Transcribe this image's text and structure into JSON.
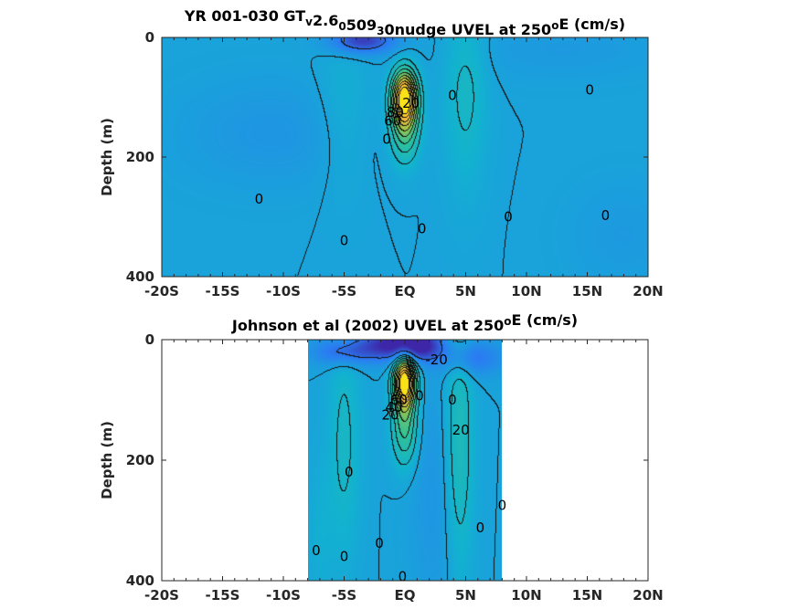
{
  "chart_data": [
    {
      "type": "heatmap",
      "title_parts": [
        {
          "t": "YR 001-030 GT"
        },
        {
          "t": "v",
          "shift": "sub"
        },
        {
          "t": "2.6"
        },
        {
          "t": "0",
          "shift": "sub"
        },
        {
          "t": "509"
        },
        {
          "t": "3",
          "shift": "sub"
        },
        {
          "t": "0nudge UVEL at 250"
        },
        {
          "t": "o",
          "shift": "sup"
        },
        {
          "t": "E (cm/s)"
        }
      ],
      "xlabel": "",
      "ylabel": "Depth (m)",
      "xlim": [
        -20,
        20
      ],
      "ylim": [
        0,
        400
      ],
      "y_reversed": true,
      "x_ticks": [
        {
          "v": -20,
          "label": "-20S"
        },
        {
          "v": -15,
          "label": "-15S"
        },
        {
          "v": -10,
          "label": "-10S"
        },
        {
          "v": -5,
          "label": "-5S"
        },
        {
          "v": 0,
          "label": "EQ"
        },
        {
          "v": 5,
          "label": "5N"
        },
        {
          "v": 10,
          "label": "10N"
        },
        {
          "v": 15,
          "label": "15N"
        },
        {
          "v": 20,
          "label": "20N"
        }
      ],
      "y_ticks": [
        {
          "v": 0,
          "label": "0"
        },
        {
          "v": 200,
          "label": "200"
        },
        {
          "v": 400,
          "label": "400"
        }
      ],
      "data_extent_x": [
        -20,
        20
      ],
      "colormap": [
        "#3e26a8",
        "#2a7ef2",
        "#12b2d0",
        "#2ec19a",
        "#a1c446",
        "#f8b83a",
        "#f9e215"
      ],
      "color_range": [
        -40,
        100
      ],
      "background_value": 0,
      "features": [
        {
          "x": 0,
          "y": 100,
          "sx": 0.7,
          "sy": 30,
          "amp": 95
        },
        {
          "x": 0,
          "y": 150,
          "sx": 0.8,
          "sy": 40,
          "amp": 35
        },
        {
          "x": -3.5,
          "y": 5,
          "sx": 1.8,
          "sy": 15,
          "amp": -35
        },
        {
          "x": 5,
          "y": 90,
          "sx": 1.2,
          "sy": 110,
          "amp": 12
        },
        {
          "x": -11,
          "y": 160,
          "sx": 5,
          "sy": 60,
          "amp": -6
        },
        {
          "x": 13,
          "y": 20,
          "sx": 6,
          "sy": 35,
          "amp": -4
        },
        {
          "x": -5,
          "y": 120,
          "sx": 1.5,
          "sy": 90,
          "amp": 6
        },
        {
          "x": 18,
          "y": 330,
          "sx": 3,
          "sy": 60,
          "amp": -4
        }
      ],
      "contour_levels": [
        -20,
        0,
        10,
        20,
        30,
        40,
        50,
        60,
        70,
        80,
        90
      ],
      "contour_labels": [
        {
          "text": "0",
          "x": 3.9,
          "y": 97
        },
        {
          "text": "0",
          "x": 15.2,
          "y": 88
        },
        {
          "text": "0",
          "x": -12.0,
          "y": 270
        },
        {
          "text": "0",
          "x": -5.0,
          "y": 340
        },
        {
          "text": "0",
          "x": 1.4,
          "y": 320
        },
        {
          "text": "0",
          "x": 8.5,
          "y": 300
        },
        {
          "text": "0",
          "x": 16.5,
          "y": 298
        },
        {
          "text": "0",
          "x": -1.5,
          "y": 170
        },
        {
          "text": "20",
          "x": 0.5,
          "y": 110
        },
        {
          "text": "80",
          "x": -0.8,
          "y": 125
        },
        {
          "text": "60",
          "x": -1.0,
          "y": 140
        }
      ]
    },
    {
      "type": "heatmap",
      "title_parts": [
        {
          "t": "Johnson et al (2002) UVEL at 250"
        },
        {
          "t": "o",
          "shift": "sup"
        },
        {
          "t": "E (cm/s)"
        }
      ],
      "xlabel": "",
      "ylabel": "Depth (m)",
      "xlim": [
        -20,
        20
      ],
      "ylim": [
        0,
        400
      ],
      "y_reversed": true,
      "x_ticks": [
        {
          "v": -20,
          "label": "-20S"
        },
        {
          "v": -15,
          "label": "-15S"
        },
        {
          "v": -10,
          "label": "-10S"
        },
        {
          "v": -5,
          "label": "-5S"
        },
        {
          "v": 0,
          "label": "EQ"
        },
        {
          "v": 5,
          "label": "5N"
        },
        {
          "v": 10,
          "label": "10N"
        },
        {
          "v": 15,
          "label": "15N"
        },
        {
          "v": 20,
          "label": "20N"
        }
      ],
      "y_ticks": [
        {
          "v": 0,
          "label": "0"
        },
        {
          "v": 200,
          "label": "200"
        },
        {
          "v": 400,
          "label": "400"
        }
      ],
      "data_extent_x": [
        -8,
        8
      ],
      "colormap": [
        "#3e26a8",
        "#2a7ef2",
        "#12b2d0",
        "#2ec19a",
        "#a1c446",
        "#f8b83a",
        "#f9e215"
      ],
      "color_range": [
        -40,
        100
      ],
      "background_value": 0,
      "features": [
        {
          "x": 0,
          "y": 70,
          "sx": 0.6,
          "sy": 28,
          "amp": 100
        },
        {
          "x": 0,
          "y": 140,
          "sx": 0.7,
          "sy": 45,
          "amp": 35
        },
        {
          "x": -1.0,
          "y": 8,
          "sx": 1.8,
          "sy": 18,
          "amp": -40
        },
        {
          "x": 1.5,
          "y": 10,
          "sx": 1.2,
          "sy": 18,
          "amp": -30
        },
        {
          "x": -5,
          "y": 20,
          "sx": 1.8,
          "sy": 16,
          "amp": -25
        },
        {
          "x": 5.5,
          "y": 30,
          "sx": 1.8,
          "sy": 20,
          "amp": -20
        },
        {
          "x": 4.5,
          "y": 170,
          "sx": 0.8,
          "sy": 150,
          "amp": 18
        },
        {
          "x": -5,
          "y": 170,
          "sx": 0.9,
          "sy": 130,
          "amp": 12
        },
        {
          "x": 2.5,
          "y": 260,
          "sx": 1.4,
          "sy": 150,
          "amp": -6
        },
        {
          "x": -7,
          "y": 320,
          "sx": 0.8,
          "sy": 80,
          "amp": 5
        }
      ],
      "contour_levels": [
        -20,
        0,
        10,
        20,
        30,
        40,
        50,
        60,
        70,
        80,
        90
      ],
      "contour_labels": [
        {
          "text": "-20",
          "x": 2.6,
          "y": 33
        },
        {
          "text": "0",
          "x": 3.9,
          "y": 100
        },
        {
          "text": "20",
          "x": 4.6,
          "y": 150
        },
        {
          "text": "0",
          "x": -4.6,
          "y": 220
        },
        {
          "text": "0",
          "x": 8.0,
          "y": 275
        },
        {
          "text": "0",
          "x": 6.2,
          "y": 312
        },
        {
          "text": "0",
          "x": -2.1,
          "y": 338
        },
        {
          "text": "0",
          "x": -7.3,
          "y": 350
        },
        {
          "text": "0",
          "x": -5.0,
          "y": 360
        },
        {
          "text": "0",
          "x": -0.2,
          "y": 393
        },
        {
          "text": "0",
          "x": 1.2,
          "y": 93
        },
        {
          "text": "60",
          "x": -0.5,
          "y": 100
        },
        {
          "text": "40",
          "x": -0.9,
          "y": 112
        },
        {
          "text": "20",
          "x": -1.2,
          "y": 125
        }
      ]
    }
  ]
}
